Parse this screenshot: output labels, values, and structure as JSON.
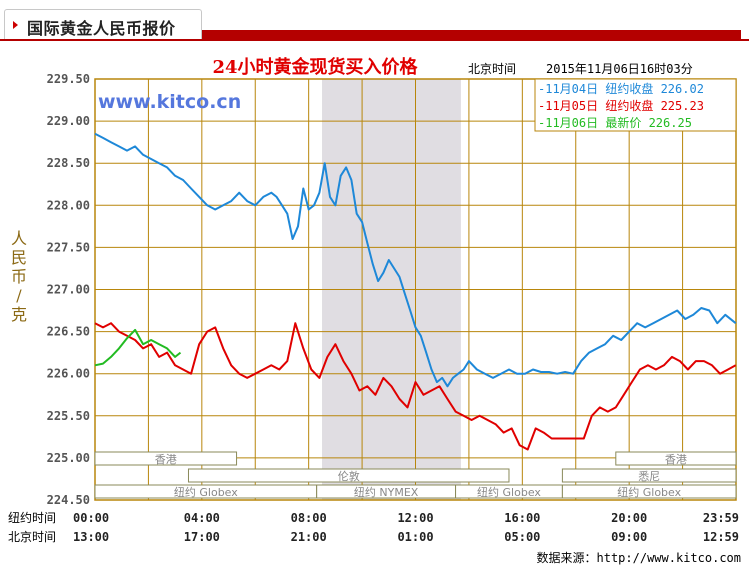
{
  "panel": {
    "title": "国际黄金人民币报价"
  },
  "footer": {
    "label": "数据来源：",
    "url": "http://www.kitco.com"
  },
  "chart_data": {
    "type": "line",
    "title": "24小时黄金现货买入价格",
    "subtitle_label": "北京时间",
    "timestamp": "2015年11月06日16时03分",
    "watermark": "www.kitco.cn",
    "ylabel": "人民币/克",
    "ylim": [
      224.5,
      229.5
    ],
    "yticks": [
      "229.50",
      "229.00",
      "228.50",
      "228.00",
      "227.50",
      "227.00",
      "226.50",
      "226.00",
      "225.50",
      "225.00",
      "224.50"
    ],
    "x_axis_ny_label": "纽约时间",
    "x_axis_bj_label": "北京时间",
    "x_ticks_ny": [
      "00:00",
      "04:00",
      "08:00",
      "12:00",
      "16:00",
      "20:00",
      "23:59"
    ],
    "x_ticks_bj": [
      "13:00",
      "17:00",
      "21:00",
      "01:00",
      "05:00",
      "09:00",
      "12:59"
    ],
    "xlim_hours": [
      0,
      24
    ],
    "colors": {
      "nov04": "#1e88d8",
      "nov05": "#e00000",
      "nov06": "#22bb22",
      "grid": "#b8860b",
      "title": "#e00000",
      "shade": "#e0dde2"
    },
    "shaded_hours": [
      8.5,
      13.7
    ],
    "legend": [
      {
        "date": "-11月04日",
        "label": "纽约收盘",
        "value": "226.02",
        "color": "#1e88d8"
      },
      {
        "date": "-11月05日",
        "label": "纽约收盘",
        "value": "225.23",
        "color": "#e00000"
      },
      {
        "date": "-11月06日",
        "label": "最新价",
        "value": "226.25",
        "color": "#22bb22"
      }
    ],
    "sessions": [
      {
        "name": "香港",
        "start": 0,
        "end": 5.3,
        "row": 0
      },
      {
        "name": "伦敦",
        "start": 3.5,
        "end": 15.5,
        "row": 1
      },
      {
        "name": "纽约 Globex",
        "start": 0,
        "end": 8.3,
        "row": 2
      },
      {
        "name": "纽约 NYMEX",
        "start": 8.3,
        "end": 13.5,
        "row": 2
      },
      {
        "name": "纽约 Globex",
        "start": 13.5,
        "end": 17.5,
        "row": 2
      },
      {
        "name": "香港",
        "start": 19.5,
        "end": 24,
        "row": 0
      },
      {
        "name": "悉尼",
        "start": 17.5,
        "end": 24,
        "row": 1
      },
      {
        "name": "纽约 Globex",
        "start": 17.5,
        "end": 24,
        "row": 2
      }
    ],
    "series": [
      {
        "name": "11月04日",
        "color": "#1e88d8",
        "x": [
          0,
          0.3,
          0.6,
          0.9,
          1.2,
          1.5,
          1.8,
          2.1,
          2.4,
          2.7,
          3.0,
          3.3,
          3.6,
          3.9,
          4.2,
          4.5,
          4.8,
          5.1,
          5.4,
          5.7,
          6.0,
          6.3,
          6.6,
          6.8,
          7.0,
          7.2,
          7.4,
          7.6,
          7.8,
          8.0,
          8.2,
          8.4,
          8.6,
          8.8,
          9.0,
          9.2,
          9.4,
          9.6,
          9.8,
          10.0,
          10.2,
          10.4,
          10.6,
          10.8,
          11.0,
          11.2,
          11.4,
          11.6,
          11.8,
          12.0,
          12.2,
          12.4,
          12.6,
          12.8,
          13.0,
          13.2,
          13.4,
          13.6,
          13.8,
          14.0,
          14.3,
          14.6,
          14.9,
          15.2,
          15.5,
          15.8,
          16.1,
          16.4,
          16.7,
          17.0,
          17.3,
          17.6,
          17.9,
          18.2,
          18.5,
          18.8,
          19.1,
          19.4,
          19.7,
          20.0,
          20.3,
          20.6,
          20.9,
          21.2,
          21.5,
          21.8,
          22.1,
          22.4,
          22.7,
          23.0,
          23.3,
          23.6,
          23.99
        ],
        "y": [
          228.85,
          228.8,
          228.75,
          228.7,
          228.65,
          228.7,
          228.6,
          228.55,
          228.5,
          228.45,
          228.35,
          228.3,
          228.2,
          228.1,
          228.0,
          227.95,
          228.0,
          228.05,
          228.15,
          228.05,
          228.0,
          228.1,
          228.15,
          228.1,
          228.0,
          227.9,
          227.6,
          227.75,
          228.2,
          227.95,
          228.0,
          228.15,
          228.5,
          228.1,
          228.0,
          228.35,
          228.45,
          228.3,
          227.9,
          227.8,
          227.55,
          227.3,
          227.1,
          227.2,
          227.35,
          227.25,
          227.15,
          226.95,
          226.75,
          226.55,
          226.45,
          226.25,
          226.05,
          225.9,
          225.95,
          225.85,
          225.95,
          226.0,
          226.05,
          226.15,
          226.05,
          226.0,
          225.95,
          226.0,
          226.05,
          226.0,
          226.0,
          226.05,
          226.02,
          226.02,
          226.0,
          226.02,
          226.0,
          226.15,
          226.25,
          226.3,
          226.35,
          226.45,
          226.4,
          226.5,
          226.6,
          226.55,
          226.6,
          226.65,
          226.7,
          226.75,
          226.65,
          226.7,
          226.78,
          226.75,
          226.6,
          226.7,
          226.6
        ]
      },
      {
        "name": "11月05日",
        "color": "#e00000",
        "x": [
          0,
          0.3,
          0.6,
          0.9,
          1.2,
          1.5,
          1.8,
          2.1,
          2.4,
          2.7,
          3.0,
          3.3,
          3.6,
          3.9,
          4.2,
          4.5,
          4.8,
          5.1,
          5.4,
          5.7,
          6.0,
          6.3,
          6.6,
          6.9,
          7.2,
          7.5,
          7.8,
          8.1,
          8.4,
          8.7,
          9.0,
          9.3,
          9.6,
          9.9,
          10.2,
          10.5,
          10.8,
          11.1,
          11.4,
          11.7,
          12.0,
          12.3,
          12.6,
          12.9,
          13.2,
          13.5,
          13.8,
          14.1,
          14.4,
          14.7,
          15.0,
          15.3,
          15.6,
          15.9,
          16.2,
          16.5,
          16.8,
          17.1,
          17.4,
          17.7,
          18.0,
          18.3,
          18.6,
          18.9,
          19.2,
          19.5,
          19.8,
          20.1,
          20.4,
          20.7,
          21.0,
          21.3,
          21.6,
          21.9,
          22.2,
          22.5,
          22.8,
          23.1,
          23.4,
          23.7,
          23.99
        ],
        "y": [
          226.6,
          226.55,
          226.6,
          226.5,
          226.45,
          226.4,
          226.3,
          226.35,
          226.2,
          226.25,
          226.1,
          226.05,
          226.0,
          226.35,
          226.5,
          226.55,
          226.3,
          226.1,
          226.0,
          225.95,
          226.0,
          226.05,
          226.1,
          226.05,
          226.15,
          226.6,
          226.3,
          226.05,
          225.95,
          226.2,
          226.35,
          226.15,
          226.0,
          225.8,
          225.85,
          225.75,
          225.95,
          225.85,
          225.7,
          225.6,
          225.9,
          225.75,
          225.8,
          225.85,
          225.7,
          225.55,
          225.5,
          225.45,
          225.5,
          225.45,
          225.4,
          225.3,
          225.35,
          225.15,
          225.1,
          225.35,
          225.3,
          225.23,
          225.23,
          225.23,
          225.23,
          225.23,
          225.5,
          225.6,
          225.55,
          225.6,
          225.75,
          225.9,
          226.05,
          226.1,
          226.05,
          226.1,
          226.2,
          226.15,
          226.05,
          226.15,
          226.15,
          226.1,
          226.0,
          226.05,
          226.1
        ]
      },
      {
        "name": "11月06日",
        "color": "#22bb22",
        "x": [
          0,
          0.3,
          0.6,
          0.9,
          1.2,
          1.5,
          1.8,
          2.1,
          2.4,
          2.7,
          3.0,
          3.2
        ],
        "y": [
          226.1,
          226.12,
          226.2,
          226.3,
          226.42,
          226.52,
          226.35,
          226.4,
          226.35,
          226.3,
          226.2,
          226.25
        ]
      }
    ]
  }
}
